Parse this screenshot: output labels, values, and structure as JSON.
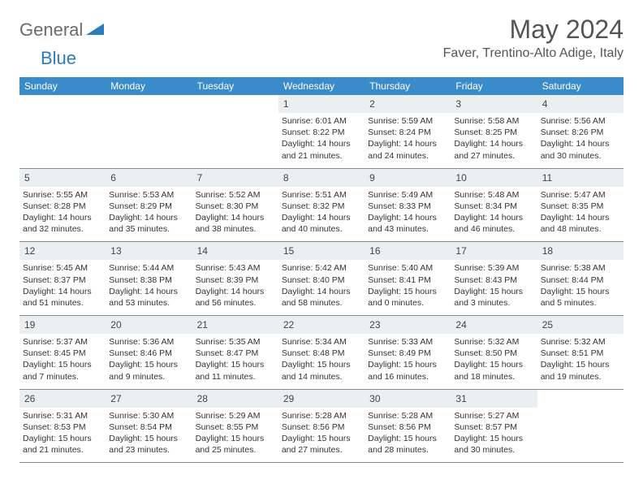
{
  "brand": {
    "text1": "General",
    "text2": "Blue"
  },
  "title": "May 2024",
  "location": "Faver, Trentino-Alto Adige, Italy",
  "colors": {
    "header_bg": "#3a8bc9",
    "header_text": "#ffffff",
    "daynum_bg": "#eceff1",
    "border": "#888888",
    "body_text": "#333333",
    "title_text": "#555555",
    "logo_gray": "#6b6b6b",
    "logo_blue": "#2b7bbf"
  },
  "weekdays": [
    "Sunday",
    "Monday",
    "Tuesday",
    "Wednesday",
    "Thursday",
    "Friday",
    "Saturday"
  ],
  "weeks": [
    [
      null,
      null,
      null,
      {
        "n": "1",
        "sr": "6:01 AM",
        "ss": "8:22 PM",
        "dl": "14 hours and 21 minutes."
      },
      {
        "n": "2",
        "sr": "5:59 AM",
        "ss": "8:24 PM",
        "dl": "14 hours and 24 minutes."
      },
      {
        "n": "3",
        "sr": "5:58 AM",
        "ss": "8:25 PM",
        "dl": "14 hours and 27 minutes."
      },
      {
        "n": "4",
        "sr": "5:56 AM",
        "ss": "8:26 PM",
        "dl": "14 hours and 30 minutes."
      }
    ],
    [
      {
        "n": "5",
        "sr": "5:55 AM",
        "ss": "8:28 PM",
        "dl": "14 hours and 32 minutes."
      },
      {
        "n": "6",
        "sr": "5:53 AM",
        "ss": "8:29 PM",
        "dl": "14 hours and 35 minutes."
      },
      {
        "n": "7",
        "sr": "5:52 AM",
        "ss": "8:30 PM",
        "dl": "14 hours and 38 minutes."
      },
      {
        "n": "8",
        "sr": "5:51 AM",
        "ss": "8:32 PM",
        "dl": "14 hours and 40 minutes."
      },
      {
        "n": "9",
        "sr": "5:49 AM",
        "ss": "8:33 PM",
        "dl": "14 hours and 43 minutes."
      },
      {
        "n": "10",
        "sr": "5:48 AM",
        "ss": "8:34 PM",
        "dl": "14 hours and 46 minutes."
      },
      {
        "n": "11",
        "sr": "5:47 AM",
        "ss": "8:35 PM",
        "dl": "14 hours and 48 minutes."
      }
    ],
    [
      {
        "n": "12",
        "sr": "5:45 AM",
        "ss": "8:37 PM",
        "dl": "14 hours and 51 minutes."
      },
      {
        "n": "13",
        "sr": "5:44 AM",
        "ss": "8:38 PM",
        "dl": "14 hours and 53 minutes."
      },
      {
        "n": "14",
        "sr": "5:43 AM",
        "ss": "8:39 PM",
        "dl": "14 hours and 56 minutes."
      },
      {
        "n": "15",
        "sr": "5:42 AM",
        "ss": "8:40 PM",
        "dl": "14 hours and 58 minutes."
      },
      {
        "n": "16",
        "sr": "5:40 AM",
        "ss": "8:41 PM",
        "dl": "15 hours and 0 minutes."
      },
      {
        "n": "17",
        "sr": "5:39 AM",
        "ss": "8:43 PM",
        "dl": "15 hours and 3 minutes."
      },
      {
        "n": "18",
        "sr": "5:38 AM",
        "ss": "8:44 PM",
        "dl": "15 hours and 5 minutes."
      }
    ],
    [
      {
        "n": "19",
        "sr": "5:37 AM",
        "ss": "8:45 PM",
        "dl": "15 hours and 7 minutes."
      },
      {
        "n": "20",
        "sr": "5:36 AM",
        "ss": "8:46 PM",
        "dl": "15 hours and 9 minutes."
      },
      {
        "n": "21",
        "sr": "5:35 AM",
        "ss": "8:47 PM",
        "dl": "15 hours and 11 minutes."
      },
      {
        "n": "22",
        "sr": "5:34 AM",
        "ss": "8:48 PM",
        "dl": "15 hours and 14 minutes."
      },
      {
        "n": "23",
        "sr": "5:33 AM",
        "ss": "8:49 PM",
        "dl": "15 hours and 16 minutes."
      },
      {
        "n": "24",
        "sr": "5:32 AM",
        "ss": "8:50 PM",
        "dl": "15 hours and 18 minutes."
      },
      {
        "n": "25",
        "sr": "5:32 AM",
        "ss": "8:51 PM",
        "dl": "15 hours and 19 minutes."
      }
    ],
    [
      {
        "n": "26",
        "sr": "5:31 AM",
        "ss": "8:53 PM",
        "dl": "15 hours and 21 minutes."
      },
      {
        "n": "27",
        "sr": "5:30 AM",
        "ss": "8:54 PM",
        "dl": "15 hours and 23 minutes."
      },
      {
        "n": "28",
        "sr": "5:29 AM",
        "ss": "8:55 PM",
        "dl": "15 hours and 25 minutes."
      },
      {
        "n": "29",
        "sr": "5:28 AM",
        "ss": "8:56 PM",
        "dl": "15 hours and 27 minutes."
      },
      {
        "n": "30",
        "sr": "5:28 AM",
        "ss": "8:56 PM",
        "dl": "15 hours and 28 minutes."
      },
      {
        "n": "31",
        "sr": "5:27 AM",
        "ss": "8:57 PM",
        "dl": "15 hours and 30 minutes."
      },
      null
    ]
  ],
  "labels": {
    "sunrise": "Sunrise:",
    "sunset": "Sunset:",
    "daylight": "Daylight:"
  }
}
